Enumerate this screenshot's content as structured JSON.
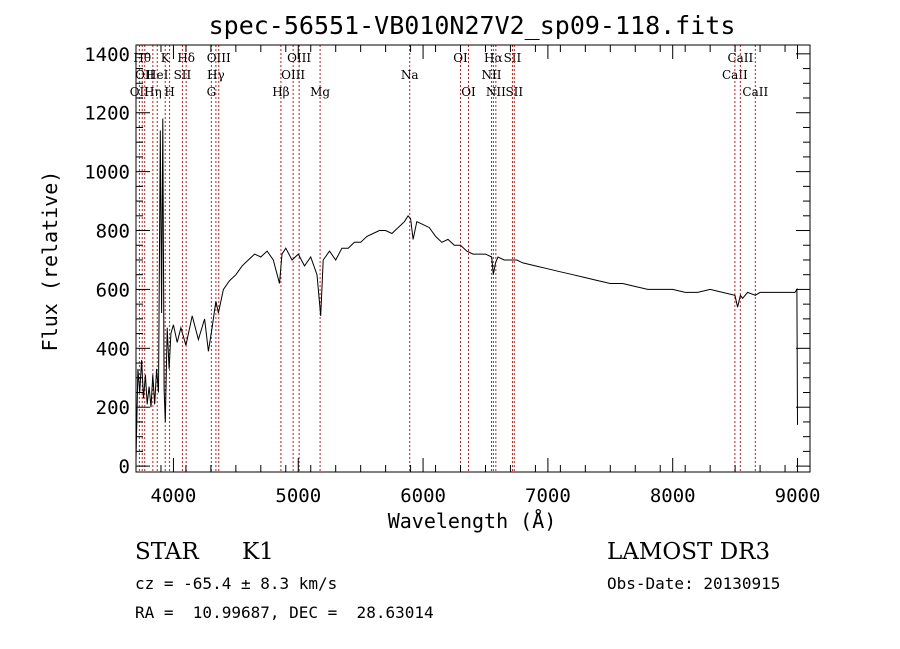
{
  "chart_data": {
    "type": "line",
    "title": "spec-56551-VB010N27V2_sp09-118.fits",
    "xlabel": "Wavelength (Å)",
    "ylabel": "Flux (relative)",
    "xlim": [
      3700,
      9100
    ],
    "ylim": [
      -20,
      1430
    ],
    "x_ticks": [
      4000,
      5000,
      6000,
      7000,
      8000,
      9000
    ],
    "x_tick_labels": [
      "4000",
      "5000",
      "6000",
      "7000",
      "8000",
      "9000"
    ],
    "y_ticks": [
      0,
      200,
      400,
      600,
      800,
      1000,
      1200,
      1400
    ],
    "y_tick_labels": [
      "0",
      "200",
      "400",
      "600",
      "800",
      "1000",
      "1200",
      "1400"
    ],
    "grid": false,
    "line_color": "#000000",
    "marker_color": "#b22222",
    "series": [
      {
        "name": "flux",
        "x": [
          3700,
          3715,
          3730,
          3745,
          3760,
          3775,
          3790,
          3805,
          3820,
          3835,
          3850,
          3865,
          3880,
          3895,
          3905,
          3915,
          3925,
          3935,
          3950,
          3965,
          3980,
          4000,
          4030,
          4060,
          4100,
          4150,
          4200,
          4250,
          4280,
          4310,
          4340,
          4360,
          4400,
          4450,
          4500,
          4550,
          4600,
          4650,
          4700,
          4750,
          4800,
          4850,
          4870,
          4900,
          4950,
          5000,
          5050,
          5100,
          5150,
          5180,
          5200,
          5250,
          5300,
          5350,
          5400,
          5450,
          5500,
          5550,
          5600,
          5650,
          5700,
          5750,
          5800,
          5850,
          5880,
          5900,
          5920,
          5950,
          6000,
          6050,
          6100,
          6150,
          6200,
          6250,
          6300,
          6350,
          6400,
          6450,
          6500,
          6550,
          6563,
          6580,
          6600,
          6650,
          6700,
          6750,
          6800,
          6900,
          7000,
          7100,
          7200,
          7300,
          7400,
          7500,
          7600,
          7700,
          7800,
          7900,
          8000,
          8100,
          8200,
          8300,
          8400,
          8498,
          8520,
          8542,
          8560,
          8600,
          8662,
          8700,
          8800,
          8900,
          8980,
          8995,
          9000
        ],
        "values": [
          20,
          330,
          250,
          360,
          230,
          310,
          210,
          270,
          200,
          310,
          210,
          330,
          250,
          1140,
          520,
          1180,
          260,
          150,
          470,
          330,
          450,
          480,
          420,
          470,
          410,
          510,
          430,
          500,
          390,
          470,
          560,
          520,
          600,
          630,
          650,
          680,
          700,
          720,
          710,
          730,
          700,
          620,
          720,
          740,
          700,
          720,
          680,
          710,
          650,
          510,
          700,
          730,
          700,
          740,
          740,
          760,
          760,
          780,
          790,
          800,
          800,
          790,
          810,
          830,
          850,
          840,
          770,
          830,
          820,
          810,
          780,
          760,
          770,
          750,
          750,
          730,
          720,
          720,
          720,
          710,
          650,
          690,
          710,
          700,
          700,
          700,
          690,
          680,
          670,
          660,
          650,
          640,
          630,
          620,
          620,
          610,
          600,
          600,
          600,
          590,
          590,
          600,
          590,
          580,
          540,
          580,
          570,
          590,
          580,
          590,
          590,
          590,
          590,
          600,
          140
        ]
      }
    ],
    "line_markers": [
      {
        "wavelength": 3727,
        "label": "OII",
        "row": 3
      },
      {
        "wavelength": 3750,
        "label": "Hθ",
        "row": 1
      },
      {
        "wavelength": 3770,
        "label": "OII",
        "row": 2
      },
      {
        "wavelength": 3835,
        "label": "Hη",
        "row": 3
      },
      {
        "wavelength": 3870,
        "label": "HeI",
        "row": 2
      },
      {
        "wavelength": 3934,
        "label": "K",
        "row": 1
      },
      {
        "wavelength": 3969,
        "label": "H",
        "row": 3
      },
      {
        "wavelength": 4072,
        "label": "SII",
        "row": 2
      },
      {
        "wavelength": 4102,
        "label": "Hδ",
        "row": 1
      },
      {
        "wavelength": 4304,
        "label": "G",
        "row": 3
      },
      {
        "wavelength": 4340,
        "label": "Hγ",
        "row": 2
      },
      {
        "wavelength": 4363,
        "label": "OIII",
        "row": 1
      },
      {
        "wavelength": 4861,
        "label": "Hβ",
        "row": 3
      },
      {
        "wavelength": 4959,
        "label": "OIII",
        "row": 2
      },
      {
        "wavelength": 5007,
        "label": "OIII",
        "row": 1
      },
      {
        "wavelength": 5175,
        "label": "Mg",
        "row": 3
      },
      {
        "wavelength": 5893,
        "label": "Na",
        "row": 2
      },
      {
        "wavelength": 6300,
        "label": "OI",
        "row": 1
      },
      {
        "wavelength": 6364,
        "label": "OI",
        "row": 3
      },
      {
        "wavelength": 6548,
        "label": "NII",
        "row": 2
      },
      {
        "wavelength": 6563,
        "label": "Hα",
        "row": 1
      },
      {
        "wavelength": 6583,
        "label": "NII",
        "row": 3
      },
      {
        "wavelength": 6716,
        "label": "SII",
        "row": 1
      },
      {
        "wavelength": 6731,
        "label": "SII",
        "row": 3
      },
      {
        "wavelength": 8498,
        "label": "CaII",
        "row": 2
      },
      {
        "wavelength": 8542,
        "label": "CaII",
        "row": 1
      },
      {
        "wavelength": 8662,
        "label": "CaII",
        "row": 3
      }
    ]
  },
  "info": {
    "object_class": "STAR",
    "subclass": "K1",
    "survey": "LAMOST DR3",
    "velocity": "cz = -65.4 ± 8.3 km/s",
    "obs_date": "Obs-Date: 20130915",
    "coordinates": "RA =  10.99687, DEC =  28.63014"
  }
}
